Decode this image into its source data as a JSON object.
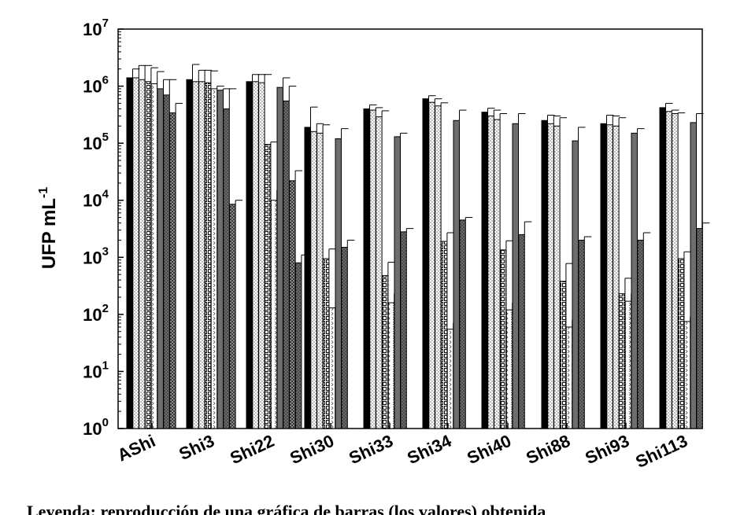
{
  "caption": "Leyenda: reproducción de una gráfica de barras (los valores) obtenida",
  "chart_data": {
    "type": "bar",
    "scale": "log",
    "ylabel": "UFP mL",
    "ylabel_sup": "-1",
    "xlabel": "",
    "title": "",
    "ylim": [
      1,
      10000000
    ],
    "yticks": [
      {
        "base": "10",
        "exp": "0"
      },
      {
        "base": "10",
        "exp": "1"
      },
      {
        "base": "10",
        "exp": "2"
      },
      {
        "base": "10",
        "exp": "3"
      },
      {
        "base": "10",
        "exp": "4"
      },
      {
        "base": "10",
        "exp": "5"
      },
      {
        "base": "10",
        "exp": "6"
      },
      {
        "base": "10",
        "exp": "7"
      }
    ],
    "categories": [
      "AShi",
      "Shi3",
      "Shi22",
      "Shi30",
      "Shi33",
      "Shi34",
      "Shi40",
      "Shi88",
      "Shi93",
      "Shi113"
    ],
    "series": [
      {
        "pattern": "solid-black",
        "values": [
          1400000,
          1300000,
          1200000,
          190000,
          400000,
          600000,
          350000,
          250000,
          220000,
          420000
        ],
        "errors": [
          2000000,
          2400000,
          1600000,
          430000,
          470000,
          680000,
          410000,
          310000,
          310000,
          500000
        ]
      },
      {
        "pattern": "light-dotted",
        "values": [
          1400000,
          1200000,
          1200000,
          160000,
          380000,
          520000,
          300000,
          220000,
          210000,
          360000
        ],
        "errors": [
          2300000,
          1900000,
          1600000,
          220000,
          420000,
          600000,
          380000,
          300000,
          300000,
          380000
        ]
      },
      {
        "pattern": "light-dotted",
        "values": [
          1300000,
          1200000,
          1150000,
          150000,
          290000,
          450000,
          260000,
          200000,
          200000,
          330000
        ],
        "errors": [
          2300000,
          1900000,
          1600000,
          210000,
          370000,
          510000,
          330000,
          280000,
          280000,
          340000
        ]
      },
      {
        "pattern": "dashed-grid",
        "values": [
          1200000,
          1150000,
          95000,
          950,
          480,
          1900,
          1350,
          380,
          230,
          950
        ],
        "errors": [
          2100000,
          1850000,
          105000,
          1400,
          820,
          2700,
          1950,
          780,
          430,
          1250
        ]
      },
      {
        "pattern": "chevron",
        "values": [
          1100000,
          900000,
          10000,
          130,
          160,
          55,
          120,
          60,
          170,
          75
        ],
        "errors": [
          1800000,
          1000000,
          15000,
          135,
          230,
          70,
          160,
          80,
          230,
          90
        ]
      },
      {
        "pattern": "solid-gray",
        "values": [
          900000,
          850000,
          950000,
          120000,
          130000,
          250000,
          220000,
          110000,
          150000,
          230000
        ],
        "errors": [
          1300000,
          900000,
          1400000,
          180000,
          150000,
          380000,
          330000,
          190000,
          180000,
          330000
        ]
      },
      {
        "pattern": "dark-dotted",
        "values": [
          700000,
          400000,
          550000,
          1500,
          2800,
          4500,
          2500,
          2000,
          2000,
          3200
        ],
        "errors": [
          1300000,
          900000,
          1000000,
          2000,
          3200,
          5000,
          4200,
          2300,
          2700,
          4000
        ]
      },
      {
        "pattern": "dark-checker",
        "values": [
          340000,
          8500,
          22000,
          null,
          null,
          null,
          null,
          null,
          null,
          null
        ],
        "errors": [
          500000,
          10000,
          33000,
          null,
          null,
          null,
          null,
          null,
          null,
          null
        ]
      },
      {
        "pattern": "dark-dotted",
        "values": [
          null,
          null,
          800,
          null,
          null,
          null,
          null,
          null,
          null,
          null
        ],
        "errors": [
          null,
          null,
          1100,
          null,
          null,
          null,
          null,
          null,
          null,
          null
        ]
      }
    ]
  }
}
